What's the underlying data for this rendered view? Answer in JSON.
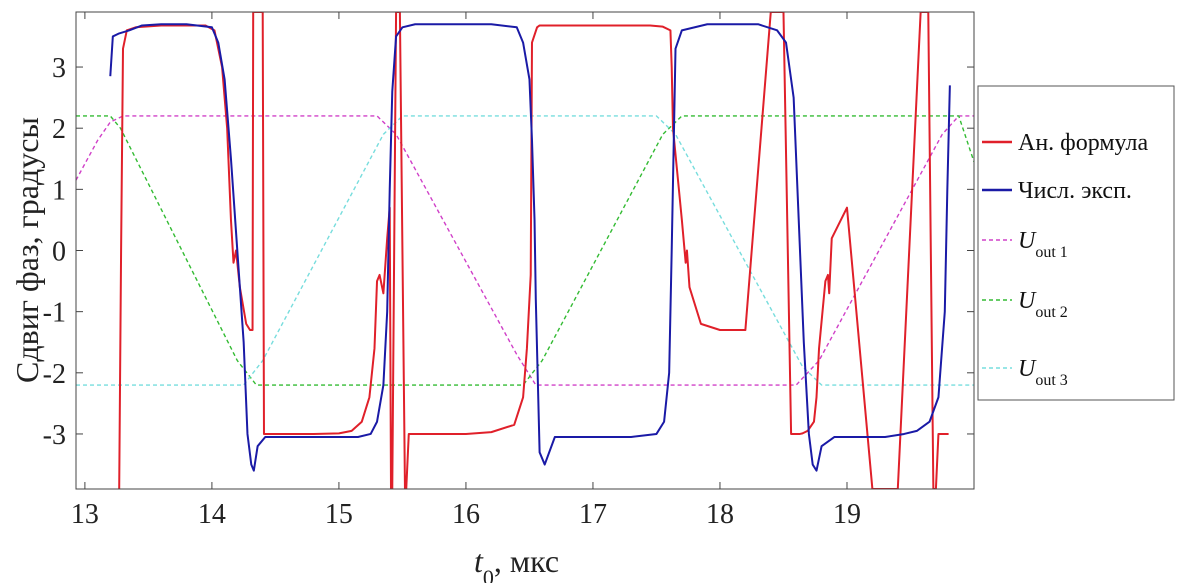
{
  "chart_data": {
    "type": "line",
    "xlabel_main": "t",
    "xlabel_sub": "0",
    "xlabel_rest": ", мкс",
    "ylabel": "Сдвиг фаз, градусы",
    "xlim": [
      12.93,
      20.0
    ],
    "ylim": [
      -3.9,
      3.9
    ],
    "x_ticks": [
      13,
      14,
      15,
      16,
      17,
      18,
      19
    ],
    "y_ticks": [
      3,
      2,
      1,
      0,
      -1,
      -2,
      -3
    ],
    "y_tick_labels": [
      "3",
      "2",
      "1",
      "0",
      "-1",
      "-2",
      "-3"
    ],
    "grid": false,
    "legend_position": "right",
    "series": [
      {
        "name": "Ан. формула",
        "color": "#e0202a",
        "style": "solid",
        "x": [
          13.27,
          13.285,
          13.3,
          13.33,
          13.4,
          13.6,
          13.8,
          13.95,
          14.02,
          14.08,
          14.12,
          14.15,
          14.17,
          14.19,
          14.22,
          14.27,
          14.3,
          14.32,
          14.325,
          14.4,
          14.41,
          14.43,
          14.6,
          14.8,
          15.0,
          15.1,
          15.18,
          15.24,
          15.28,
          15.3,
          15.32,
          15.35,
          15.38,
          15.4,
          15.41,
          15.42,
          15.45,
          15.48,
          15.52,
          15.53,
          15.55,
          15.62,
          15.8,
          16.0,
          16.2,
          16.38,
          16.45,
          16.48,
          16.51,
          16.52,
          16.56,
          16.58,
          16.62,
          16.64,
          16.7,
          16.9,
          17.1,
          17.3,
          17.45,
          17.55,
          17.61,
          17.62,
          17.63,
          17.7,
          17.73,
          17.74,
          17.76,
          17.85,
          18.0,
          18.2,
          18.4,
          18.5,
          18.56,
          18.6,
          18.62,
          18.63,
          18.65,
          18.69,
          18.74,
          18.76,
          18.78,
          18.83,
          18.85,
          18.86,
          18.88,
          19.0,
          19.2,
          19.4,
          19.58,
          19.64,
          19.68,
          19.7,
          19.72,
          19.74,
          19.76,
          19.8
        ],
        "y": [
          -3.9,
          0.0,
          3.3,
          3.6,
          3.65,
          3.68,
          3.68,
          3.68,
          3.6,
          3.0,
          2.0,
          0.5,
          -0.2,
          0.0,
          -0.6,
          -1.2,
          -1.3,
          -1.3,
          3.9,
          3.9,
          -3.0,
          -3.0,
          -3.0,
          -3.0,
          -2.99,
          -2.95,
          -2.8,
          -2.4,
          -1.6,
          -0.5,
          -0.4,
          -0.7,
          0.2,
          0.7,
          -3.9,
          -3.9,
          3.9,
          3.9,
          -3.9,
          -3.9,
          -3.0,
          -3.0,
          -3.0,
          -3.0,
          -2.97,
          -2.85,
          -2.4,
          -1.6,
          -0.4,
          3.4,
          3.65,
          3.68,
          3.68,
          3.68,
          3.68,
          3.68,
          3.68,
          3.68,
          3.68,
          3.66,
          3.6,
          3.0,
          2.0,
          0.5,
          -0.2,
          0.0,
          -0.6,
          -1.2,
          -1.3,
          -1.3,
          3.9,
          3.9,
          -3.0,
          -3.0,
          -3.0,
          -3.0,
          -2.99,
          -2.95,
          -2.8,
          -2.4,
          -1.6,
          -0.5,
          -0.4,
          -0.7,
          0.2,
          0.7,
          -3.9,
          -3.9,
          3.9,
          3.9,
          -3.9,
          -3.9,
          -3.0,
          -3.0,
          -3.0,
          -3.0
        ]
      },
      {
        "name": "Числ. эксп.",
        "color": "#1a1aa6",
        "style": "solid",
        "x": [
          13.2,
          13.22,
          13.27,
          13.35,
          13.45,
          13.6,
          13.8,
          14.0,
          14.05,
          14.1,
          14.15,
          14.2,
          14.25,
          14.28,
          14.31,
          14.33,
          14.36,
          14.42,
          14.6,
          14.8,
          15.0,
          15.15,
          15.25,
          15.3,
          15.35,
          15.38,
          15.4,
          15.42,
          15.45,
          15.5,
          15.6,
          15.8,
          16.0,
          16.2,
          16.4,
          16.45,
          16.5,
          16.52,
          16.54,
          16.55,
          16.58,
          16.62,
          16.7,
          16.9,
          17.1,
          17.3,
          17.5,
          17.56,
          17.6,
          17.62,
          17.65,
          17.7,
          17.9,
          18.1,
          18.3,
          18.45,
          18.52,
          18.58,
          18.62,
          18.66,
          18.7,
          18.73,
          18.76,
          18.8,
          18.9,
          19.1,
          19.3,
          19.45,
          19.55,
          19.65,
          19.72,
          19.77,
          19.79,
          19.81
        ],
        "y": [
          2.85,
          3.5,
          3.55,
          3.6,
          3.68,
          3.7,
          3.7,
          3.65,
          3.4,
          2.8,
          1.5,
          0.0,
          -1.5,
          -3.0,
          -3.5,
          -3.6,
          -3.2,
          -3.05,
          -3.05,
          -3.05,
          -3.05,
          -3.05,
          -3.0,
          -2.8,
          -2.2,
          -1.0,
          1.0,
          2.6,
          3.5,
          3.65,
          3.7,
          3.7,
          3.7,
          3.7,
          3.65,
          3.4,
          2.8,
          1.8,
          0.5,
          -0.8,
          -3.3,
          -3.5,
          -3.05,
          -3.05,
          -3.05,
          -3.05,
          -3.0,
          -2.8,
          -2.0,
          0.0,
          3.3,
          3.6,
          3.7,
          3.7,
          3.7,
          3.6,
          3.4,
          2.5,
          0.5,
          -1.5,
          -3.0,
          -3.5,
          -3.6,
          -3.2,
          -3.05,
          -3.05,
          -3.05,
          -3.0,
          -2.95,
          -2.8,
          -2.4,
          -1.0,
          1.0,
          2.7
        ]
      },
      {
        "name": "U out 1",
        "legend_main": "U",
        "legend_sub": "out 1",
        "color": "#d040c8",
        "style": "dashed",
        "x": [
          12.93,
          13.1,
          13.2,
          13.3,
          15.3,
          15.45,
          16.4,
          16.55,
          18.6,
          18.78,
          19.75,
          19.88,
          20.0
        ],
        "y": [
          1.15,
          1.8,
          2.1,
          2.2,
          2.2,
          1.9,
          -1.7,
          -2.2,
          -2.2,
          -1.8,
          1.9,
          2.2,
          2.2
        ]
      },
      {
        "name": "U out 2",
        "legend_main": "U",
        "legend_sub": "out 2",
        "color": "#33bb33",
        "style": "dashed",
        "x": [
          12.93,
          13.2,
          13.28,
          14.2,
          14.35,
          16.45,
          16.6,
          17.55,
          17.7,
          19.7,
          19.88,
          20.0
        ],
        "y": [
          2.2,
          2.2,
          2.0,
          -1.8,
          -2.2,
          -2.2,
          -1.8,
          1.9,
          2.2,
          2.2,
          2.2,
          1.45
        ]
      },
      {
        "name": "U out 3",
        "legend_main": "U",
        "legend_sub": "out 3",
        "color": "#77dddd",
        "style": "dashed",
        "x": [
          12.93,
          14.25,
          14.4,
          15.35,
          15.5,
          17.5,
          17.65,
          18.65,
          18.8,
          20.0
        ],
        "y": [
          -2.2,
          -2.2,
          -1.8,
          1.9,
          2.2,
          2.2,
          1.9,
          -1.9,
          -2.2,
          -2.2
        ]
      }
    ]
  }
}
